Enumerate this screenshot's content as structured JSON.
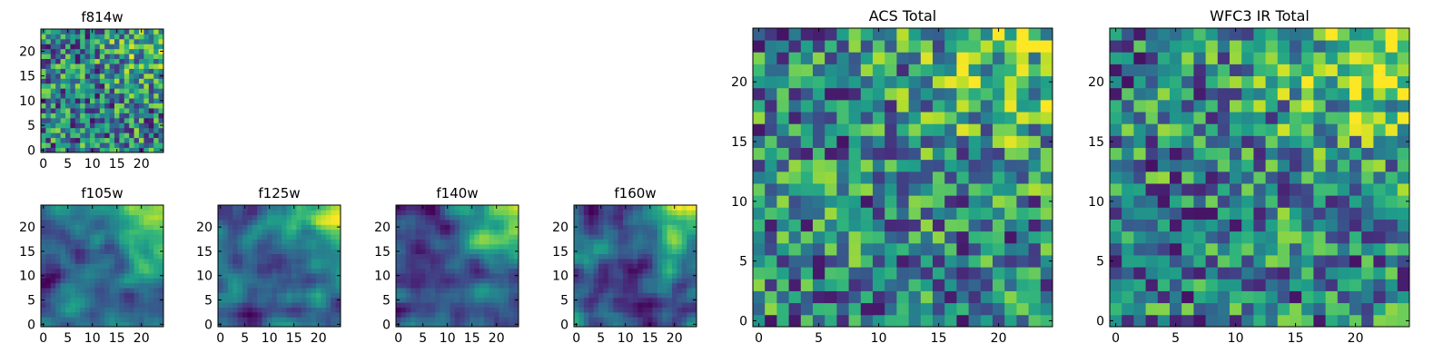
{
  "figure": {
    "colormap": "viridis",
    "colors": {
      "frame": "#000000",
      "background": "#ffffff"
    }
  },
  "chart_data": [
    {
      "id": "f814w",
      "type": "heatmap",
      "title": "f814w",
      "grid_size": 25,
      "xticks": [
        "0",
        "5",
        "10",
        "15",
        "20"
      ],
      "yticks": [
        "0",
        "5",
        "10",
        "15",
        "20"
      ],
      "xlim": [
        0,
        25
      ],
      "ylim": [
        0,
        25
      ],
      "pattern": "noise",
      "seed": 814,
      "gradient": 0.25,
      "hot_corner": "top-right"
    },
    {
      "id": "f105w",
      "type": "heatmap",
      "title": "f105w",
      "grid_size": 25,
      "xticks": [
        "0",
        "5",
        "10",
        "15",
        "20"
      ],
      "yticks": [
        "0",
        "5",
        "10",
        "15",
        "20"
      ],
      "xlim": [
        0,
        25
      ],
      "ylim": [
        0,
        25
      ],
      "pattern": "smooth",
      "seed": 105,
      "gradient": 0.6,
      "hot_corner": "top-right"
    },
    {
      "id": "f125w",
      "type": "heatmap",
      "title": "f125w",
      "grid_size": 25,
      "xticks": [
        "0",
        "5",
        "10",
        "15",
        "20"
      ],
      "yticks": [
        "0",
        "5",
        "10",
        "15",
        "20"
      ],
      "xlim": [
        0,
        25
      ],
      "ylim": [
        0,
        25
      ],
      "pattern": "smooth",
      "seed": 125,
      "gradient": 0.45,
      "hot_corner": "top-right"
    },
    {
      "id": "f140w",
      "type": "heatmap",
      "title": "f140w",
      "grid_size": 25,
      "xticks": [
        "0",
        "5",
        "10",
        "15",
        "20"
      ],
      "yticks": [
        "0",
        "5",
        "10",
        "15",
        "20"
      ],
      "xlim": [
        0,
        25
      ],
      "ylim": [
        0,
        25
      ],
      "pattern": "smooth",
      "seed": 140,
      "gradient": 0.5,
      "hot_corner": "top-right"
    },
    {
      "id": "f160w",
      "type": "heatmap",
      "title": "f160w",
      "grid_size": 25,
      "xticks": [
        "0",
        "5",
        "10",
        "15",
        "20"
      ],
      "yticks": [
        "0",
        "5",
        "10",
        "15",
        "20"
      ],
      "xlim": [
        0,
        25
      ],
      "ylim": [
        0,
        25
      ],
      "pattern": "smooth",
      "seed": 160,
      "gradient": 0.5,
      "hot_corner": "top-right"
    },
    {
      "id": "acs_total",
      "type": "heatmap",
      "title": "ACS Total",
      "grid_size": 25,
      "xticks": [
        "0",
        "5",
        "10",
        "15",
        "20"
      ],
      "yticks": [
        "0",
        "5",
        "10",
        "15",
        "20"
      ],
      "xlim": [
        0,
        25
      ],
      "ylim": [
        0,
        25
      ],
      "pattern": "noise",
      "seed": 901,
      "gradient": 0.3,
      "hot_corner": "top-right"
    },
    {
      "id": "wfc3_ir_total",
      "type": "heatmap",
      "title": "WFC3 IR Total",
      "grid_size": 25,
      "xticks": [
        "0",
        "5",
        "10",
        "15",
        "20"
      ],
      "yticks": [
        "0",
        "5",
        "10",
        "15",
        "20"
      ],
      "xlim": [
        0,
        25
      ],
      "ylim": [
        0,
        25
      ],
      "pattern": "noise",
      "seed": 902,
      "gradient": 0.4,
      "hot_corner": "top-right"
    }
  ]
}
